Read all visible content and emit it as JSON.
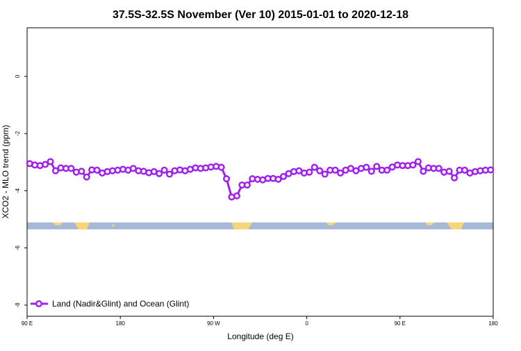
{
  "chart_data": {
    "type": "line",
    "title": "37.5S-32.5S November (Ver 10)   2015-01-01 to 2020-12-18",
    "x_label": "Longitude (deg E)",
    "y_label": "XCO2 - MLO trend (ppm)",
    "x": [
      92.5,
      97.5,
      102.5,
      107.5,
      112.5,
      117.5,
      122.5,
      127.5,
      132.5,
      137.5,
      142.5,
      147.5,
      152.5,
      157.5,
      162.5,
      167.5,
      172.5,
      177.5,
      182.5,
      187.5,
      192.5,
      197.5,
      202.5,
      207.5,
      212.5,
      217.5,
      222.5,
      227.5,
      232.5,
      237.5,
      242.5,
      247.5,
      252.5,
      257.5,
      262.5,
      267.5,
      272.5,
      277.5,
      282.5,
      287.5,
      292.5,
      297.5,
      302.5,
      307.5,
      312.5,
      317.5,
      322.5,
      327.5,
      332.5,
      337.5,
      342.5,
      347.5,
      352.5,
      357.5,
      362.5,
      367.5,
      372.5,
      377.5,
      382.5,
      387.5,
      392.5,
      397.5,
      402.5,
      407.5,
      412.5,
      417.5,
      422.5,
      427.5,
      432.5,
      437.5,
      442.5,
      447.5,
      452.5,
      457.5,
      462.5,
      467.5,
      472.5,
      477.5,
      482.5,
      487.5,
      492.5,
      497.5,
      502.5,
      507.5,
      512.5,
      517.5,
      522.5,
      527.5,
      532.5,
      537.5
    ],
    "series": [
      {
        "name": "Land (Nadir&Glint) and Ocean (Glint)",
        "color": "#a020f0",
        "values": [
          -3.05,
          -3.1,
          -3.12,
          -3.08,
          -2.98,
          -3.3,
          -3.2,
          -3.22,
          -3.22,
          -3.35,
          -3.32,
          -3.52,
          -3.27,
          -3.28,
          -3.38,
          -3.33,
          -3.3,
          -3.28,
          -3.25,
          -3.28,
          -3.22,
          -3.3,
          -3.32,
          -3.37,
          -3.33,
          -3.4,
          -3.28,
          -3.42,
          -3.3,
          -3.27,
          -3.3,
          -3.25,
          -3.2,
          -3.22,
          -3.2,
          -3.17,
          -3.15,
          -3.18,
          -3.58,
          -4.22,
          -4.18,
          -3.8,
          -3.8,
          -3.58,
          -3.6,
          -3.62,
          -3.57,
          -3.57,
          -3.6,
          -3.5,
          -3.4,
          -3.33,
          -3.3,
          -3.38,
          -3.35,
          -3.18,
          -3.3,
          -3.42,
          -3.28,
          -3.28,
          -3.38,
          -3.28,
          -3.22,
          -3.3,
          -3.22,
          -3.18,
          -3.32,
          -3.15,
          -3.28,
          -3.28,
          -3.17,
          -3.1,
          -3.12,
          -3.12,
          -3.1,
          -2.98,
          -3.32,
          -3.2,
          -3.22,
          -3.22,
          -3.35,
          -3.32,
          -3.55,
          -3.28,
          -3.28,
          -3.38,
          -3.33,
          -3.3,
          -3.28,
          -3.27
        ]
      }
    ],
    "xlim": [
      90,
      540
    ],
    "xticks": [
      {
        "value": 90,
        "label": "90 E"
      },
      180,
      {
        "value": 270,
        "label": "90 W"
      },
      {
        "value": 360,
        "label": "0"
      },
      {
        "value": 450,
        "label": "90 E"
      },
      {
        "value": 540,
        "label": "180"
      }
    ],
    "ylim": [
      -8.39,
      1.7
    ],
    "yticks": [
      0,
      -2,
      -4,
      -6,
      -8
    ],
    "legend": "lower left"
  }
}
